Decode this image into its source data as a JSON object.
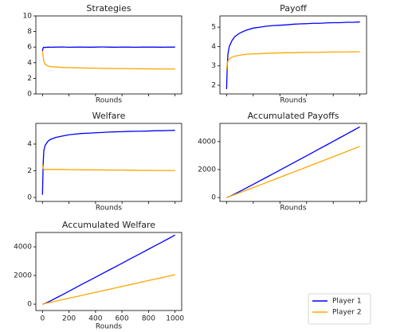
{
  "chart_data": [
    {
      "type": "line",
      "title": "Strategies",
      "xlabel": "Rounds",
      "x": [
        0,
        5,
        10,
        20,
        40,
        60,
        100,
        150,
        200,
        250,
        300,
        350,
        400,
        450,
        500,
        550,
        600,
        650,
        700,
        750,
        800,
        850,
        900,
        950,
        1000
      ],
      "xlim": [
        -50,
        1050
      ],
      "xticks": [
        0,
        200,
        400,
        600,
        800,
        1000
      ],
      "xticklabels": false,
      "ylim": [
        0,
        10
      ],
      "yticks": [
        0,
        2,
        4,
        6,
        8,
        10
      ],
      "series": [
        {
          "color": "#0000ff",
          "values": [
            5.5,
            5.9,
            6.0,
            5.95,
            6.0,
            5.98,
            6.0,
            6.02,
            5.98,
            6.0,
            6.01,
            5.99,
            6.0,
            6.02,
            6.0,
            5.99,
            6.01,
            6.0,
            5.98,
            6.0,
            6.01,
            6.0,
            5.99,
            6.01,
            6.0
          ]
        },
        {
          "color": "#ffa500",
          "values": [
            5.5,
            4.8,
            4.2,
            3.8,
            3.6,
            3.5,
            3.45,
            3.4,
            3.38,
            3.35,
            3.33,
            3.3,
            3.3,
            3.28,
            3.27,
            3.25,
            3.25,
            3.24,
            3.23,
            3.22,
            3.22,
            3.2,
            3.2,
            3.2,
            3.2
          ]
        }
      ]
    },
    {
      "type": "line",
      "title": "Payoff",
      "xlabel": "Rounds",
      "x": [
        0,
        5,
        10,
        20,
        40,
        60,
        100,
        150,
        200,
        250,
        300,
        350,
        400,
        450,
        500,
        550,
        600,
        650,
        700,
        750,
        800,
        850,
        900,
        950,
        1000
      ],
      "xlim": [
        -50,
        1050
      ],
      "xticks": [
        0,
        200,
        400,
        600,
        800,
        1000
      ],
      "xticklabels": false,
      "ylim": [
        1.55,
        5.58
      ],
      "yticks": [
        2,
        3,
        4,
        5
      ],
      "series": [
        {
          "color": "#0000ff",
          "values": [
            1.8,
            3.0,
            3.6,
            4.0,
            4.3,
            4.5,
            4.7,
            4.85,
            4.95,
            5.0,
            5.05,
            5.08,
            5.1,
            5.12,
            5.15,
            5.17,
            5.18,
            5.2,
            5.2,
            5.22,
            5.23,
            5.23,
            5.25,
            5.25,
            5.27
          ]
        },
        {
          "color": "#ffa500",
          "values": [
            2.8,
            3.1,
            3.25,
            3.35,
            3.45,
            3.5,
            3.55,
            3.6,
            3.62,
            3.63,
            3.65,
            3.66,
            3.67,
            3.68,
            3.68,
            3.69,
            3.7,
            3.7,
            3.7,
            3.71,
            3.72,
            3.72,
            3.72,
            3.73,
            3.73
          ]
        }
      ]
    },
    {
      "type": "line",
      "title": "Welfare",
      "xlabel": "Rounds",
      "x": [
        0,
        5,
        10,
        20,
        40,
        60,
        100,
        150,
        200,
        250,
        300,
        350,
        400,
        450,
        500,
        550,
        600,
        650,
        700,
        750,
        800,
        850,
        900,
        950,
        1000
      ],
      "xlim": [
        -50,
        1050
      ],
      "xticks": [
        0,
        200,
        400,
        600,
        800,
        1000
      ],
      "xticklabels": false,
      "ylim": [
        -0.3,
        5.55
      ],
      "yticks": [
        0,
        2,
        4
      ],
      "series": [
        {
          "color": "#0000ff",
          "values": [
            0.2,
            2.5,
            3.5,
            3.9,
            4.2,
            4.35,
            4.5,
            4.6,
            4.7,
            4.75,
            4.8,
            4.82,
            4.85,
            4.87,
            4.9,
            4.92,
            4.93,
            4.95,
            4.96,
            4.97,
            4.98,
            5.0,
            5.0,
            5.02,
            5.03
          ]
        },
        {
          "color": "#ffa500",
          "values": [
            2.5,
            2.2,
            2.1,
            2.1,
            2.1,
            2.1,
            2.1,
            2.1,
            2.08,
            2.08,
            2.07,
            2.07,
            2.06,
            2.06,
            2.05,
            2.05,
            2.05,
            2.04,
            2.04,
            2.03,
            2.03,
            2.02,
            2.02,
            2.02,
            2.02
          ]
        }
      ]
    },
    {
      "type": "line",
      "title": "Accumulated Payoffs",
      "xlabel": "Rounds",
      "x": [
        0,
        5,
        10,
        20,
        40,
        60,
        100,
        150,
        200,
        250,
        300,
        350,
        400,
        450,
        500,
        550,
        600,
        650,
        700,
        750,
        800,
        850,
        900,
        950,
        1000
      ],
      "xlim": [
        -50,
        1050
      ],
      "xticks": [
        0,
        200,
        400,
        600,
        800,
        1000
      ],
      "xticklabels": false,
      "ylim": [
        -280,
        5300
      ],
      "yticks": [
        0,
        2000,
        4000
      ],
      "series": [
        {
          "color": "#0000ff",
          "values": [
            0,
            15,
            33,
            72,
            158,
            250,
            445,
            690,
            940,
            1195,
            1450,
            1705,
            1960,
            2215,
            2470,
            2725,
            2985,
            3240,
            3500,
            3755,
            4015,
            4275,
            4535,
            4795,
            5055
          ]
        },
        {
          "color": "#ffa500",
          "values": [
            0,
            16,
            33,
            67,
            137,
            208,
            350,
            530,
            710,
            892,
            1075,
            1258,
            1441,
            1625,
            1809,
            1993,
            2177,
            2362,
            2547,
            2732,
            2917,
            3102,
            3288,
            3474,
            3660
          ]
        }
      ]
    },
    {
      "type": "line",
      "title": "Accumulated Welfare",
      "xlabel": "Rounds",
      "x": [
        0,
        5,
        10,
        20,
        40,
        60,
        100,
        150,
        200,
        250,
        300,
        350,
        400,
        450,
        500,
        550,
        600,
        650,
        700,
        750,
        800,
        850,
        900,
        950,
        1000
      ],
      "xlim": [
        -50,
        1050
      ],
      "xticks": [
        0,
        200,
        400,
        600,
        800,
        1000
      ],
      "xticklabels": true,
      "ylim": [
        -440,
        5000
      ],
      "yticks": [
        0,
        2000,
        4000
      ],
      "legend": "lower right",
      "series": [
        {
          "name": "Player 1",
          "color": "#0000ff",
          "values": [
            0,
            10,
            25,
            60,
            140,
            230,
            420,
            660,
            900,
            1150,
            1400,
            1640,
            1880,
            2125,
            2370,
            2610,
            2855,
            3100,
            3345,
            3590,
            3835,
            4080,
            4325,
            4570,
            4820
          ]
        },
        {
          "name": "Player 2",
          "color": "#ffa500",
          "values": [
            0,
            12,
            23,
            44,
            86,
            128,
            210,
            315,
            418,
            520,
            622,
            725,
            828,
            930,
            1032,
            1135,
            1237,
            1340,
            1442,
            1545,
            1647,
            1750,
            1852,
            1955,
            2057
          ]
        }
      ]
    }
  ]
}
